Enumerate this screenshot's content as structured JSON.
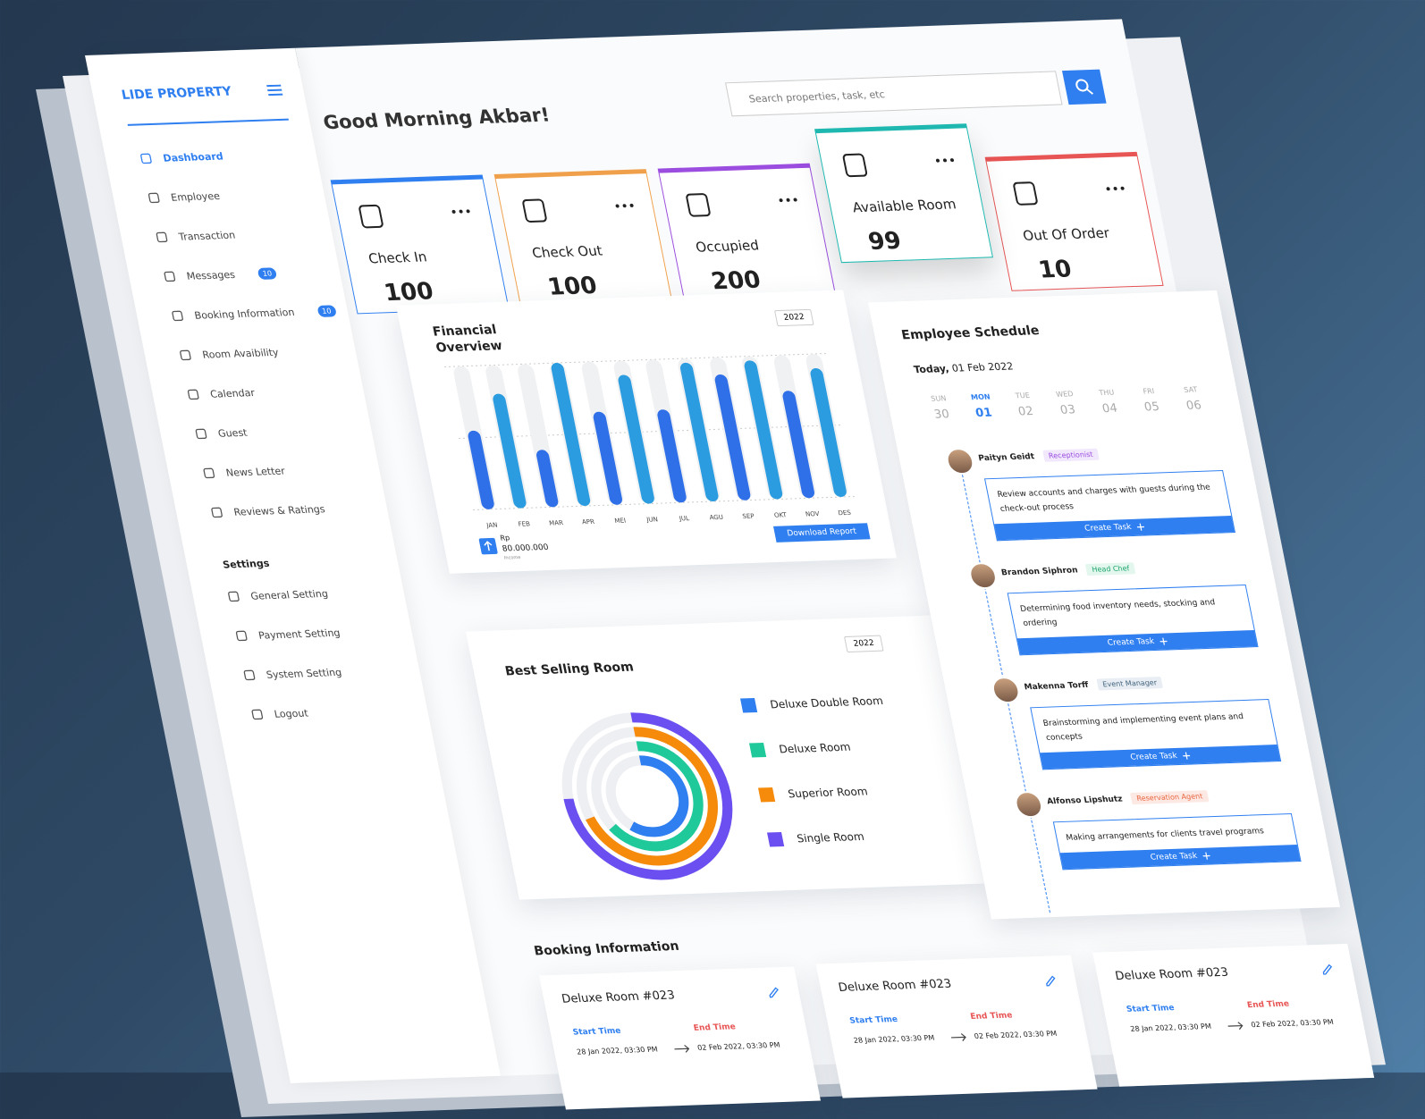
{
  "sidebar": {
    "logo": "LIDE PROPERTY",
    "menu": [
      {
        "label": "Dashboard"
      },
      {
        "label": "Employee"
      },
      {
        "label": "Transaction"
      },
      {
        "label": "Messages",
        "badge": 10
      },
      {
        "label": "Booking Information",
        "badge": 10
      },
      {
        "label": "Room Avaibility"
      },
      {
        "label": "Calendar"
      },
      {
        "label": "Guest"
      },
      {
        "label": "News Letter"
      },
      {
        "label": "Reviews & Ratings"
      }
    ],
    "settings_title": "Settings",
    "settings": [
      "General Setting",
      "Payment Setting",
      "System Setting",
      "Logout"
    ]
  },
  "header": {
    "greeting": "Good Morning Akbar!",
    "search_placeholder": "Search properties, task, etc"
  },
  "stats": [
    {
      "label": "Check In",
      "value": 100,
      "color": "#2f7ff0"
    },
    {
      "label": "Check Out",
      "value": 100,
      "color": "#f0a04b"
    },
    {
      "label": "Occupied",
      "value": 200,
      "color": "#9b4de0"
    },
    {
      "label": "Available Room",
      "value": 99,
      "color": "#1fb8b0"
    },
    {
      "label": "Out Of Order",
      "value": 10,
      "color": "#e85555"
    }
  ],
  "chart_data": [
    {
      "type": "bar",
      "title": "Financial Overview",
      "year": 2022,
      "categories": [
        "JAN",
        "FEB",
        "MAR",
        "APR",
        "MEI",
        "JUN",
        "JUL",
        "AGU",
        "SEP",
        "OKT",
        "NOV",
        "DES"
      ],
      "values": [
        55,
        80,
        40,
        100,
        65,
        90,
        65,
        97,
        88,
        97,
        75,
        90
      ],
      "colors": [
        "#2f6fe8",
        "#2b9ce0"
      ],
      "ylim": [
        0,
        100
      ],
      "currency": "Rp",
      "amount": "80.000.000",
      "amount_label": "Income",
      "button": "Download Report"
    },
    {
      "type": "radial",
      "title": "Best Selling Room",
      "year": 2022,
      "series": [
        {
          "name": "Deluxe Double Room",
          "color": "#2f7ff0",
          "value": 60
        },
        {
          "name": "Deluxe Room",
          "color": "#1fc99a",
          "value": 65
        },
        {
          "name": "Superior Room",
          "color": "#f58a0b",
          "value": 70
        },
        {
          "name": "Single Room",
          "color": "#6b4ff0",
          "value": 75
        }
      ],
      "ylim": [
        0,
        100
      ]
    }
  ],
  "schedule": {
    "title": "Employee Schedule",
    "today_label": "Today,",
    "today": "01 Feb 2022",
    "days": [
      {
        "day": "SUN",
        "date": "30"
      },
      {
        "day": "MON",
        "date": "01"
      },
      {
        "day": "TUE",
        "date": "02"
      },
      {
        "day": "WED",
        "date": "03"
      },
      {
        "day": "THU",
        "date": "04"
      },
      {
        "day": "FRI",
        "date": "05"
      },
      {
        "day": "SAT",
        "date": "06"
      }
    ],
    "entries": [
      {
        "name": "Paityn Geidt",
        "role": "Receptionist",
        "task": "Review accounts and charges with guests during the check-out process",
        "button": "Create Task"
      },
      {
        "name": "Brandon Siphron",
        "role": "Head Chef",
        "task": "Determining food inventory needs, stocking and ordering",
        "button": "Create Task"
      },
      {
        "name": "Makenna Torff",
        "role": "Event Manager",
        "task": "Brainstorming and implementing event plans and concepts",
        "button": "Create Task"
      },
      {
        "name": "Alfonso Lipshutz",
        "role": "Reservation Agent",
        "task": "Making arrangements for clients travel programs",
        "button": "Create Task"
      }
    ]
  },
  "booking": {
    "title": "Booking Information",
    "cards": [
      {
        "room": "Deluxe Room #023",
        "start_label": "Start Time",
        "end_label": "End Time",
        "start": "28 Jan 2022, 03:30 PM",
        "end": "02 Feb 2022, 03:30 PM"
      },
      {
        "room": "Deluxe Room #023",
        "start_label": "Start Time",
        "end_label": "End Time",
        "start": "28 Jan 2022, 03:30 PM",
        "end": "02 Feb 2022, 03:30 PM"
      },
      {
        "room": "Deluxe Room #023",
        "start_label": "Start Time",
        "end_label": "End Time",
        "start": "28 Jan 2022, 03:30 PM",
        "end": "02 Feb 2022, 03:30 PM"
      }
    ]
  }
}
